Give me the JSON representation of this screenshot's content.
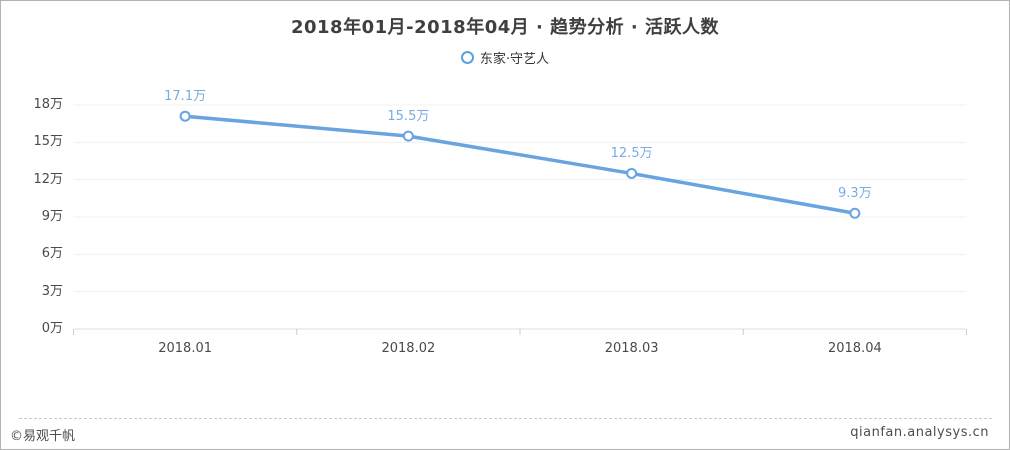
{
  "header": {
    "title": "2018年01月-2018年04月 · 趋势分析 · 活跃人数"
  },
  "legend": {
    "series_label": "东家·守艺人",
    "marker_color": "#5b9fe0"
  },
  "chart_data": {
    "type": "line",
    "title": "2018年01月-2018年04月 · 趋势分析 · 活跃人数",
    "categories": [
      "2018.01",
      "2018.02",
      "2018.03",
      "2018.04"
    ],
    "series": [
      {
        "name": "东家·守艺人",
        "values": [
          17.1,
          15.5,
          12.5,
          9.3
        ],
        "point_labels": [
          "17.1万",
          "15.5万",
          "12.5万",
          "9.3万"
        ],
        "color": "#69a4e1"
      }
    ],
    "yticks": [
      "0万",
      "3万",
      "6万",
      "9万",
      "12万",
      "15万",
      "18万"
    ],
    "ylabel": "",
    "xlabel": "",
    "ylim": [
      0,
      18
    ],
    "unit": "万",
    "grid": true,
    "grid_color": "#f1f1f1",
    "axis_line_color": "#dcdcdc",
    "legend_position": "top"
  },
  "footer": {
    "source": "©易观千帆",
    "site": "qianfan.analysys.cn"
  }
}
